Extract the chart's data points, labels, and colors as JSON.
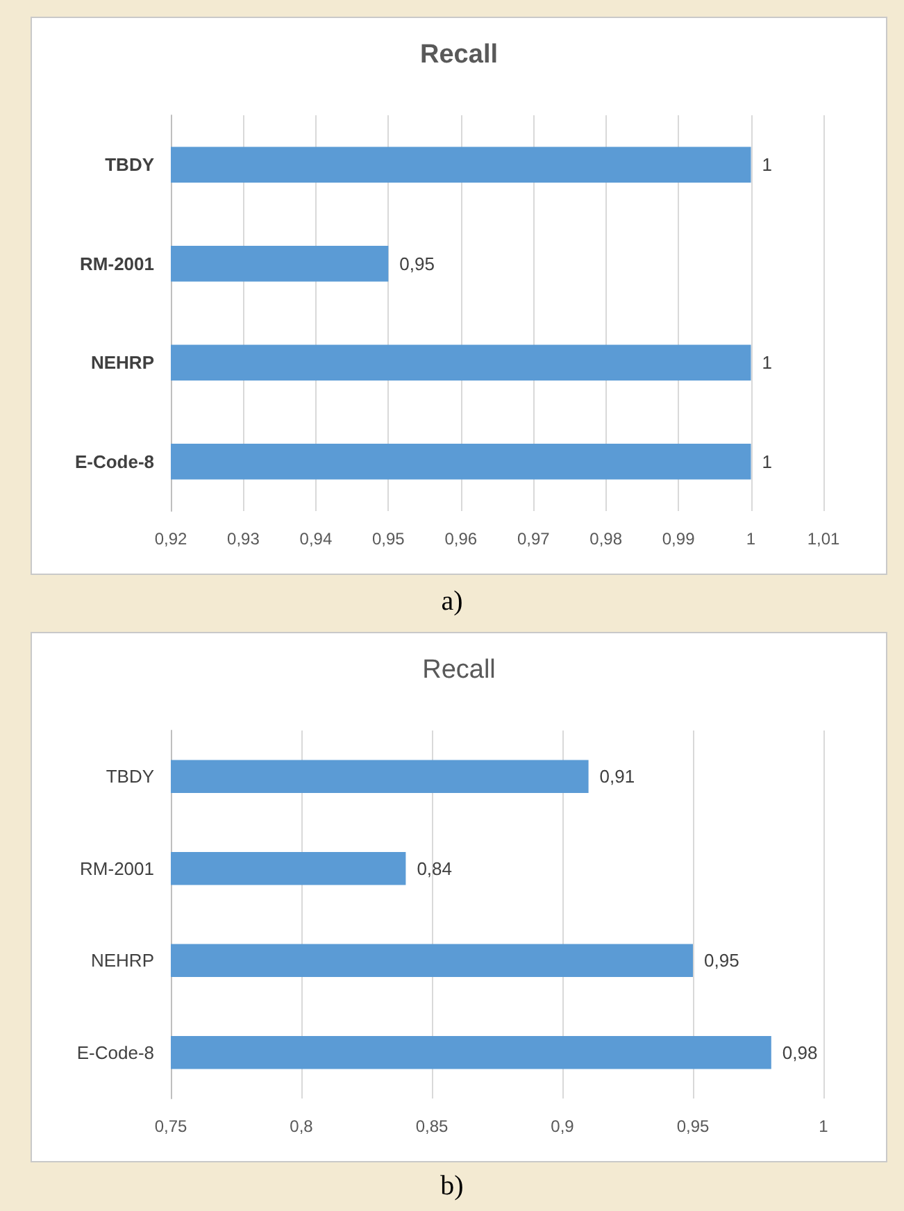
{
  "chart_data": [
    {
      "type": "bar",
      "orientation": "horizontal",
      "title": "Recall",
      "categories": [
        "TBDY",
        "RM-2001",
        "NEHRP",
        "E-Code-8"
      ],
      "values": [
        1,
        0.95,
        1,
        1
      ],
      "value_labels": [
        "1",
        "0,95",
        "1",
        "1"
      ],
      "color": "#5b9bd5",
      "xlim": [
        0.92,
        1.01
      ],
      "xticks": [
        {
          "value": 0.92,
          "label": "0,92"
        },
        {
          "value": 0.93,
          "label": "0,93"
        },
        {
          "value": 0.94,
          "label": "0,94"
        },
        {
          "value": 0.95,
          "label": "0,95"
        },
        {
          "value": 0.96,
          "label": "0,96"
        },
        {
          "value": 0.97,
          "label": "0,97"
        },
        {
          "value": 0.98,
          "label": "0,98"
        },
        {
          "value": 0.99,
          "label": "0,99"
        },
        {
          "value": 1,
          "label": "1"
        },
        {
          "value": 1.01,
          "label": "1,01"
        }
      ],
      "grid": "x",
      "annotations": [
        "a)"
      ]
    },
    {
      "type": "bar",
      "orientation": "horizontal",
      "title": "Recall",
      "categories": [
        "TBDY",
        "RM-2001",
        "NEHRP",
        "E-Code-8"
      ],
      "values": [
        0.91,
        0.84,
        0.95,
        0.98
      ],
      "value_labels": [
        "0,91",
        "0,84",
        "0,95",
        "0,98"
      ],
      "color": "#5b9bd5",
      "xlim": [
        0.75,
        1
      ],
      "xticks": [
        {
          "value": 0.75,
          "label": "0,75"
        },
        {
          "value": 0.8,
          "label": "0,8"
        },
        {
          "value": 0.85,
          "label": "0,85"
        },
        {
          "value": 0.9,
          "label": "0,9"
        },
        {
          "value": 0.95,
          "label": "0,95"
        },
        {
          "value": 1,
          "label": "1"
        }
      ],
      "grid": "x",
      "annotations": [
        "b)"
      ]
    }
  ]
}
